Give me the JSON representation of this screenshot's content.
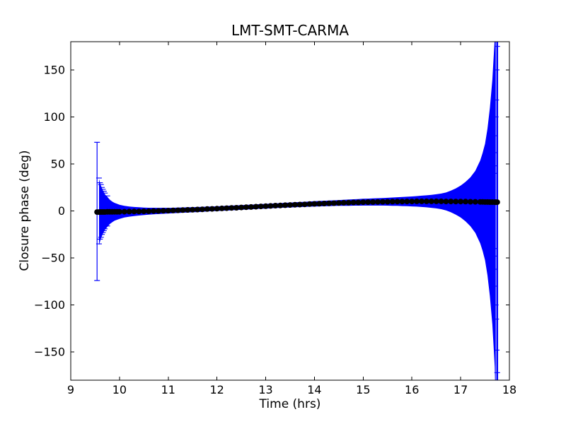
{
  "chart_data": {
    "type": "scatter",
    "subtype": "errorbar",
    "title": "LMT-SMT-CARMA",
    "xlabel": "Time (hrs)",
    "ylabel": "Closure phase (deg)",
    "xlim": [
      9,
      18
    ],
    "ylim": [
      -180,
      180
    ],
    "xticks": [
      9,
      10,
      11,
      12,
      13,
      14,
      15,
      16,
      17,
      18
    ],
    "yticks": [
      -150,
      -100,
      -50,
      0,
      50,
      100,
      150
    ],
    "grid": false,
    "legend": null,
    "colors": {
      "errorbar": "#0000ff",
      "marker": "#000000",
      "axes": "#000000",
      "background": "#ffffff"
    },
    "series": [
      {
        "name": "closure-phase",
        "marker": "circle",
        "marker_radius_px": 4,
        "points_tye": [
          [
            9.54,
            -1.2,
            74
          ],
          [
            9.58,
            -1.2,
            35
          ],
          [
            9.62,
            -1.1,
            28
          ],
          [
            9.66,
            -1.1,
            23
          ],
          [
            9.7,
            -1.1,
            19
          ],
          [
            9.75,
            -1.0,
            16
          ],
          [
            9.8,
            -1.0,
            13
          ],
          [
            9.85,
            -1.0,
            11
          ],
          [
            9.9,
            -0.9,
            9.5
          ],
          [
            9.95,
            -0.9,
            8.5
          ],
          [
            10.0,
            -0.9,
            7.5
          ],
          [
            10.1,
            -0.8,
            6.2
          ],
          [
            10.2,
            -0.7,
            5.4
          ],
          [
            10.3,
            -0.6,
            4.8
          ],
          [
            10.4,
            -0.5,
            4.4
          ],
          [
            10.5,
            -0.4,
            4.0
          ],
          [
            10.6,
            -0.3,
            3.7
          ],
          [
            10.7,
            -0.1,
            3.5
          ],
          [
            10.8,
            0.0,
            3.3
          ],
          [
            10.9,
            0.2,
            3.2
          ],
          [
            11.0,
            0.3,
            3.0
          ],
          [
            11.1,
            0.5,
            2.9
          ],
          [
            11.2,
            0.7,
            2.9
          ],
          [
            11.3,
            0.9,
            2.8
          ],
          [
            11.4,
            1.1,
            2.8
          ],
          [
            11.5,
            1.3,
            2.7
          ],
          [
            11.6,
            1.5,
            2.7
          ],
          [
            11.7,
            1.7,
            2.6
          ],
          [
            11.8,
            2.0,
            2.6
          ],
          [
            11.9,
            2.2,
            2.5
          ],
          [
            12.0,
            2.4,
            2.5
          ],
          [
            12.1,
            2.7,
            2.5
          ],
          [
            12.2,
            2.9,
            2.5
          ],
          [
            12.3,
            3.2,
            2.5
          ],
          [
            12.4,
            3.4,
            2.5
          ],
          [
            12.5,
            3.7,
            2.5
          ],
          [
            12.6,
            4.0,
            2.5
          ],
          [
            12.7,
            4.2,
            2.5
          ],
          [
            12.8,
            4.5,
            2.5
          ],
          [
            12.9,
            4.8,
            2.5
          ],
          [
            13.0,
            5.0,
            2.5
          ],
          [
            13.1,
            5.3,
            2.5
          ],
          [
            13.2,
            5.6,
            2.5
          ],
          [
            13.3,
            5.8,
            2.5
          ],
          [
            13.4,
            6.1,
            2.6
          ],
          [
            13.5,
            6.3,
            2.6
          ],
          [
            13.6,
            6.6,
            2.6
          ],
          [
            13.7,
            6.8,
            2.7
          ],
          [
            13.8,
            7.0,
            2.7
          ],
          [
            13.9,
            7.3,
            2.8
          ],
          [
            14.0,
            7.5,
            2.8
          ],
          [
            14.1,
            7.7,
            2.9
          ],
          [
            14.2,
            7.9,
            2.9
          ],
          [
            14.3,
            8.1,
            3.0
          ],
          [
            14.4,
            8.3,
            3.0
          ],
          [
            14.5,
            8.5,
            3.1
          ],
          [
            14.6,
            8.7,
            3.2
          ],
          [
            14.7,
            8.8,
            3.3
          ],
          [
            14.8,
            9.0,
            3.4
          ],
          [
            14.9,
            9.1,
            3.5
          ],
          [
            15.0,
            9.3,
            3.6
          ],
          [
            15.1,
            9.4,
            3.7
          ],
          [
            15.2,
            9.5,
            3.8
          ],
          [
            15.3,
            9.6,
            3.9
          ],
          [
            15.4,
            9.7,
            4.0
          ],
          [
            15.5,
            9.8,
            4.2
          ],
          [
            15.6,
            9.9,
            4.4
          ],
          [
            15.7,
            10.0,
            4.6
          ],
          [
            15.8,
            10.0,
            4.8
          ],
          [
            15.9,
            10.1,
            5.0
          ],
          [
            16.0,
            10.1,
            5.3
          ],
          [
            16.1,
            10.2,
            5.6
          ],
          [
            16.2,
            10.2,
            6.0
          ],
          [
            16.3,
            10.2,
            6.4
          ],
          [
            16.4,
            10.2,
            6.9
          ],
          [
            16.5,
            10.2,
            7.5
          ],
          [
            16.6,
            10.2,
            8.3
          ],
          [
            16.7,
            10.1,
            9.5
          ],
          [
            16.8,
            10.1,
            11.5
          ],
          [
            16.9,
            10.0,
            14
          ],
          [
            17.0,
            10.0,
            17
          ],
          [
            17.1,
            9.9,
            21
          ],
          [
            17.2,
            9.8,
            26
          ],
          [
            17.3,
            9.7,
            33
          ],
          [
            17.4,
            9.6,
            44
          ],
          [
            17.45,
            9.6,
            52
          ],
          [
            17.5,
            9.5,
            62
          ],
          [
            17.55,
            9.5,
            78
          ],
          [
            17.6,
            9.4,
            100
          ],
          [
            17.65,
            9.4,
            130
          ],
          [
            17.7,
            9.3,
            175
          ],
          [
            17.72,
            9.3,
            225
          ],
          [
            17.75,
            9.3,
            400
          ]
        ],
        "isolated_first_bar": {
          "t": 9.54,
          "lo": -74,
          "hi": 73
        },
        "clipped_last_bar": {
          "t": 17.75
        },
        "cap_marks_tv": [
          [
            9.58,
            35
          ],
          [
            9.58,
            -35
          ],
          [
            9.6,
            30
          ],
          [
            9.6,
            -30
          ],
          [
            9.62,
            28
          ],
          [
            9.62,
            -28
          ],
          [
            9.64,
            25
          ],
          [
            9.64,
            -25
          ],
          [
            9.66,
            23
          ],
          [
            9.66,
            -23
          ],
          [
            9.68,
            21
          ],
          [
            9.68,
            -21
          ],
          [
            9.7,
            19
          ],
          [
            9.7,
            -19
          ],
          [
            9.75,
            16
          ],
          [
            9.75,
            -16
          ],
          [
            17.68,
            40
          ],
          [
            17.68,
            -40
          ],
          [
            17.69,
            48
          ],
          [
            17.69,
            -48
          ],
          [
            17.7,
            62
          ],
          [
            17.7,
            -62
          ],
          [
            17.71,
            80
          ],
          [
            17.71,
            -80
          ],
          [
            17.72,
            100
          ],
          [
            17.72,
            -100
          ],
          [
            17.73,
            118
          ],
          [
            17.73,
            -115
          ],
          [
            17.74,
            150
          ],
          [
            17.74,
            -148
          ],
          [
            17.75,
            175
          ],
          [
            17.75,
            -172
          ]
        ]
      }
    ]
  }
}
